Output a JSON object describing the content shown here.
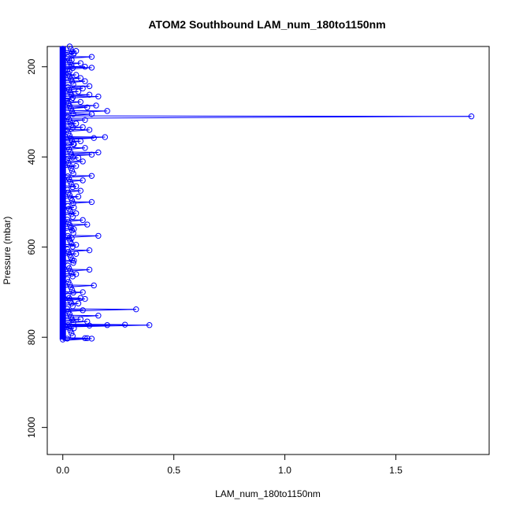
{
  "chart_data": {
    "type": "scatter",
    "title": "ATOM2 Southbound LAM_num_180to1150nm",
    "xlabel": "LAM_num_180to1150nm",
    "ylabel": "Pressure (mbar)",
    "xlim": [
      -0.07,
      1.92
    ],
    "ylim": [
      1060,
      155
    ],
    "y_reversed": true,
    "x_ticks": [
      0.0,
      0.5,
      1.0,
      1.5
    ],
    "x_tick_labels": [
      "0.0",
      "0.5",
      "1.0",
      "1.5"
    ],
    "y_ticks": [
      200,
      400,
      600,
      800,
      1000
    ],
    "y_tick_labels": [
      "200",
      "400",
      "600",
      "800",
      "1000"
    ],
    "marker": "open-circle",
    "color": "#0000ff",
    "connected": true,
    "grid": false,
    "legend": "none",
    "y_range_of_profile": [
      155,
      805
    ],
    "dense_values_near_zero": true,
    "points": [
      [
        0.0,
        160
      ],
      [
        0.06,
        165
      ],
      [
        0.05,
        170
      ],
      [
        0.13,
        178
      ],
      [
        0.04,
        185
      ],
      [
        0.08,
        192
      ],
      [
        0.1,
        200
      ],
      [
        0.13,
        202
      ],
      [
        0.03,
        210
      ],
      [
        0.06,
        218
      ],
      [
        0.08,
        225
      ],
      [
        0.1,
        232
      ],
      [
        0.12,
        243
      ],
      [
        0.09,
        248
      ],
      [
        0.07,
        255
      ],
      [
        0.12,
        262
      ],
      [
        0.16,
        266
      ],
      [
        0.04,
        272
      ],
      [
        0.08,
        278
      ],
      [
        0.15,
        286
      ],
      [
        0.11,
        290
      ],
      [
        0.2,
        298
      ],
      [
        0.13,
        305
      ],
      [
        1.84,
        310
      ],
      [
        0.1,
        318
      ],
      [
        0.06,
        326
      ],
      [
        0.09,
        334
      ],
      [
        0.12,
        340
      ],
      [
        0.19,
        356
      ],
      [
        0.14,
        358
      ],
      [
        0.08,
        365
      ],
      [
        0.05,
        372
      ],
      [
        0.1,
        380
      ],
      [
        0.16,
        390
      ],
      [
        0.13,
        395
      ],
      [
        0.07,
        402
      ],
      [
        0.09,
        410
      ],
      [
        0.06,
        420
      ],
      [
        0.13,
        442
      ],
      [
        0.09,
        452
      ],
      [
        0.06,
        465
      ],
      [
        0.08,
        475
      ],
      [
        0.07,
        488
      ],
      [
        0.13,
        500
      ],
      [
        0.05,
        512
      ],
      [
        0.06,
        525
      ],
      [
        0.09,
        540
      ],
      [
        0.11,
        550
      ],
      [
        0.05,
        560
      ],
      [
        0.16,
        575
      ],
      [
        0.04,
        580
      ],
      [
        0.06,
        595
      ],
      [
        0.12,
        607
      ],
      [
        0.06,
        615
      ],
      [
        0.05,
        630
      ],
      [
        0.12,
        650
      ],
      [
        0.06,
        660
      ],
      [
        0.14,
        685
      ],
      [
        0.09,
        700
      ],
      [
        0.08,
        713
      ],
      [
        0.1,
        715
      ],
      [
        0.07,
        725
      ],
      [
        0.33,
        738
      ],
      [
        0.09,
        740
      ],
      [
        0.16,
        752
      ],
      [
        0.08,
        760
      ],
      [
        0.11,
        765
      ],
      [
        0.28,
        772
      ],
      [
        0.39,
        773
      ],
      [
        0.2,
        773
      ],
      [
        0.12,
        774
      ],
      [
        0.05,
        780
      ],
      [
        0.1,
        802
      ],
      [
        0.11,
        802
      ],
      [
        0.13,
        803
      ],
      [
        0.0,
        805
      ]
    ]
  }
}
